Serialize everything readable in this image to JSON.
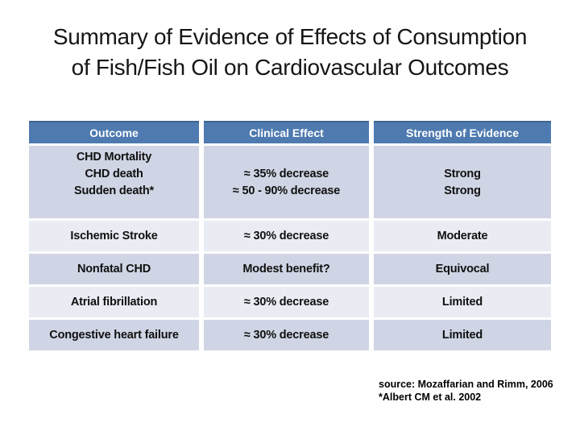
{
  "slide": {
    "title_line1": "Summary of Evidence of Effects of Consumption",
    "title_line2": "of Fish/Fish Oil on Cardiovascular Outcomes"
  },
  "table": {
    "headers": [
      "Outcome",
      "Clinical Effect",
      "Strength of Evidence"
    ],
    "rows": [
      {
        "outcome": [
          "CHD Mortality",
          "CHD death",
          "Sudden death*"
        ],
        "effect": [
          "≈ 35% decrease",
          "≈ 50 - 90% decrease"
        ],
        "strength": [
          "Strong",
          "Strong"
        ]
      },
      {
        "outcome": [
          "Ischemic Stroke"
        ],
        "effect": [
          "≈ 30% decrease"
        ],
        "strength": [
          "Moderate"
        ]
      },
      {
        "outcome": [
          "Nonfatal CHD"
        ],
        "effect": [
          "Modest benefit?"
        ],
        "strength": [
          "Equivocal"
        ]
      },
      {
        "outcome": [
          "Atrial fibrillation"
        ],
        "effect": [
          "≈ 30% decrease"
        ],
        "strength": [
          "Limited"
        ]
      },
      {
        "outcome": [
          "Congestive heart failure"
        ],
        "effect": [
          "≈ 30% decrease"
        ],
        "strength": [
          "Limited"
        ]
      }
    ]
  },
  "citation": {
    "source": "source: Mozaffarian and Rimm, 2006",
    "footnote": "*Albert CM et al. 2002"
  },
  "colors": {
    "header_bg": "#4e7ab0",
    "header_border": "#3e6691",
    "header_text": "#ffffff",
    "row_dark": "#cfd5e4",
    "row_light": "#e9ecf3"
  }
}
